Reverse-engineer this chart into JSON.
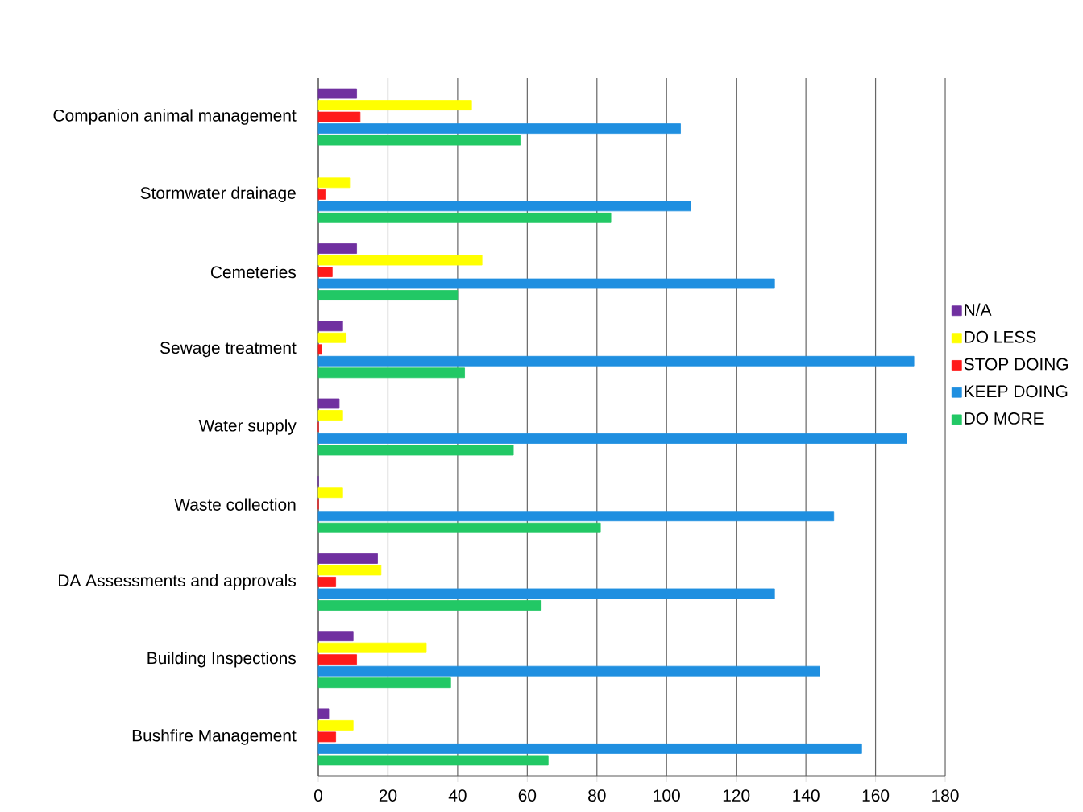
{
  "chart_data": {
    "type": "bar",
    "orientation": "horizontal",
    "categories": [
      "Companion animal management",
      "Stormwater drainage",
      "Cemeteries",
      "Sewage treatment",
      "Water supply",
      "Waste collection",
      "DA Assessments and approvals",
      "Building Inspections",
      "Bushfire Management"
    ],
    "series": [
      {
        "name": "N/A",
        "color": "#7030a0",
        "values": [
          11,
          null,
          11,
          7,
          6,
          0,
          17,
          10,
          3
        ]
      },
      {
        "name": "DO LESS",
        "color": "#ffff00",
        "values": [
          44,
          9,
          47,
          8,
          7,
          7,
          18,
          31,
          10
        ]
      },
      {
        "name": "STOP DOING",
        "color": "#ff1a1a",
        "values": [
          12,
          2,
          4,
          1,
          0,
          0,
          5,
          11,
          5
        ]
      },
      {
        "name": "KEEP DOING",
        "color": "#1f8fe0",
        "values": [
          104,
          107,
          131,
          171,
          169,
          148,
          131,
          144,
          156
        ]
      },
      {
        "name": "DO MORE",
        "color": "#22c865",
        "values": [
          58,
          84,
          40,
          42,
          56,
          81,
          64,
          38,
          66
        ]
      }
    ],
    "xlim": [
      0,
      180
    ],
    "xticks": [
      0,
      20,
      40,
      60,
      80,
      100,
      120,
      140,
      160,
      180
    ],
    "grid": "x",
    "legend": "right"
  }
}
